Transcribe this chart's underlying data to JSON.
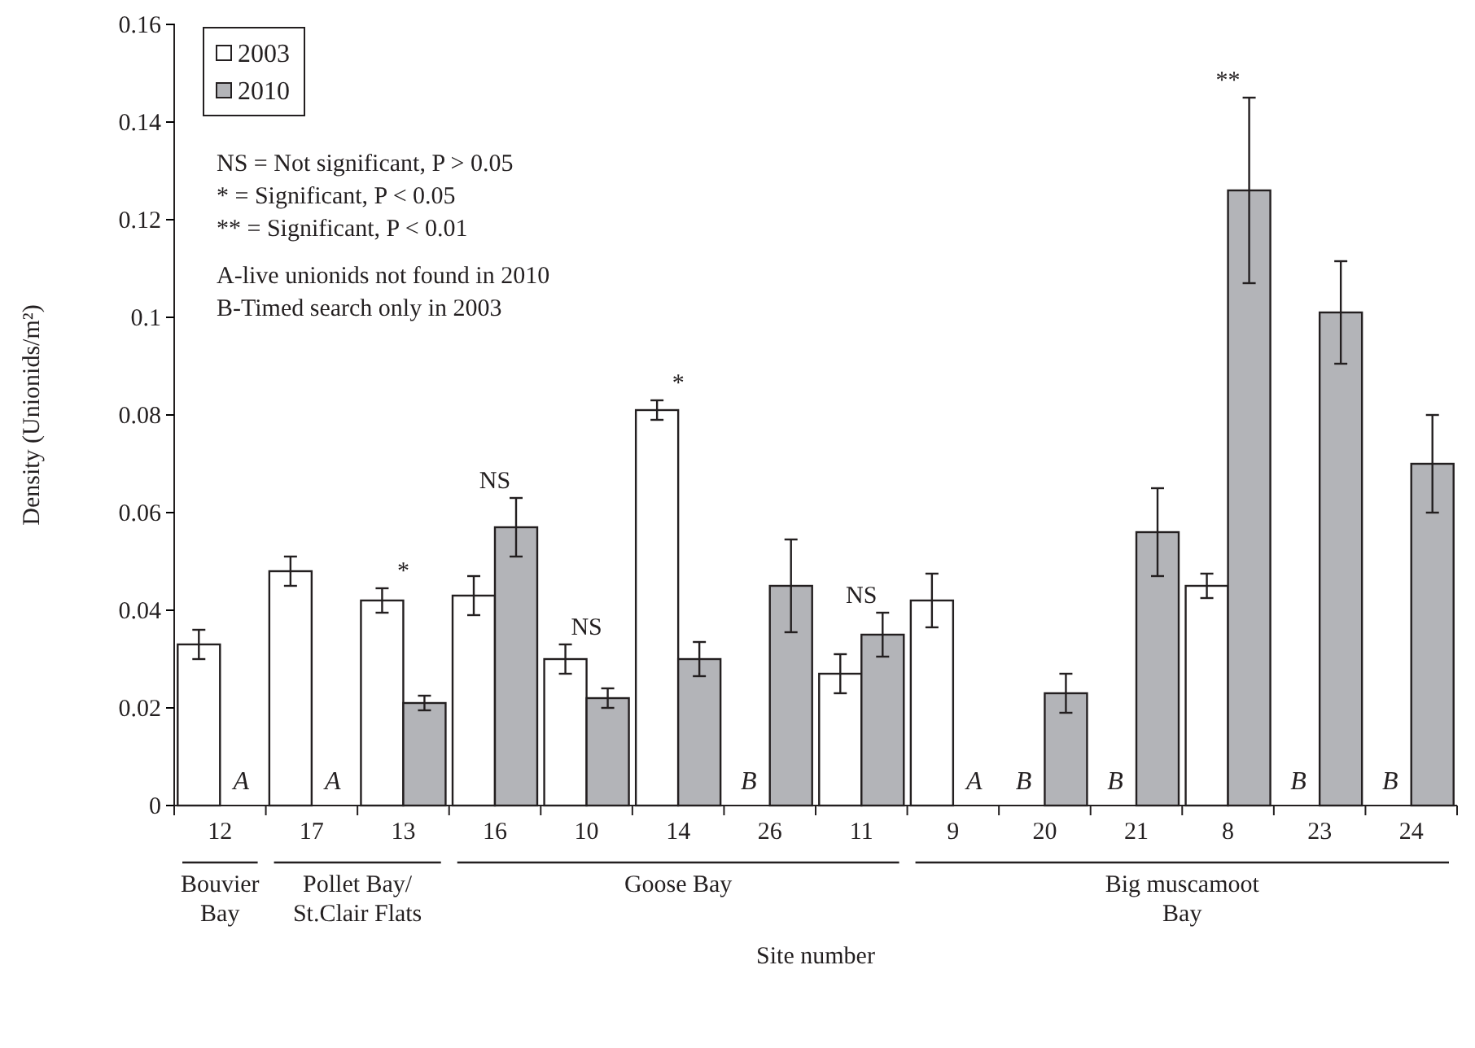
{
  "chart_data": {
    "type": "bar",
    "ylabel": "Density (Unionids/m²)",
    "xlabel": "Site number",
    "categories": [
      "12",
      "17",
      "13",
      "16",
      "10",
      "14",
      "26",
      "11",
      "9",
      "20",
      "21",
      "8",
      "23",
      "24"
    ],
    "series": [
      {
        "name": "2003",
        "color": "#ffffff",
        "values": [
          0.033,
          0.048,
          0.042,
          0.043,
          0.03,
          0.081,
          null,
          0.027,
          0.042,
          null,
          null,
          0.045,
          null,
          null
        ],
        "errors": [
          0.003,
          0.003,
          0.0025,
          0.004,
          0.003,
          0.002,
          null,
          0.004,
          0.0055,
          null,
          null,
          0.0025,
          null,
          null
        ]
      },
      {
        "name": "2010",
        "color": "#b3b4b8",
        "values": [
          null,
          null,
          0.021,
          0.057,
          0.022,
          0.03,
          0.045,
          0.035,
          null,
          0.023,
          0.056,
          0.126,
          0.101,
          0.07
        ],
        "errors": [
          null,
          null,
          0.0015,
          0.006,
          0.002,
          0.0035,
          0.0095,
          0.0045,
          null,
          0.004,
          0.009,
          0.019,
          0.0105,
          0.01
        ]
      }
    ],
    "ylim": [
      0,
      0.16
    ],
    "yticks": [
      0,
      0.02,
      0.04,
      0.06,
      0.08,
      0.1,
      0.12,
      0.14,
      0.16
    ],
    "legend": "top left",
    "grid": false,
    "annotations": [
      "NS = Not significant, P > 0.05",
      "* = Significant, P < 0.05",
      "** = Significant, P < 0.01",
      "A-live unionids not found in 2010",
      "B-Timed search only in 2003",
      "Bouvier Bay",
      "Pollet Bay/ St.Clair Flats",
      "Goose Bay",
      "Big muscamoot Bay",
      {
        "text": "NS",
        "x": "16",
        "y": 0.057
      },
      {
        "text": "NS",
        "x": "10",
        "y": 0.03
      },
      {
        "text": "NS",
        "x": "11",
        "y": 0.035
      },
      {
        "text": "*",
        "x": "13",
        "y": 0.042
      },
      {
        "text": "*",
        "x": "14",
        "y": 0.081
      },
      "**",
      {
        "text": "A",
        "x": "12",
        "y": 0
      },
      {
        "text": "A",
        "x": "17",
        "y": 0
      },
      {
        "text": "A",
        "x": "9",
        "y": 0
      },
      {
        "text": "B",
        "x": "26",
        "y": 0
      },
      {
        "text": "B",
        "x": "20",
        "y": 0
      },
      {
        "text": "B",
        "x": "21",
        "y": 0
      },
      {
        "text": "B",
        "x": "23",
        "y": 0
      },
      {
        "text": "B",
        "x": "24",
        "y": 0
      }
    ]
  }
}
